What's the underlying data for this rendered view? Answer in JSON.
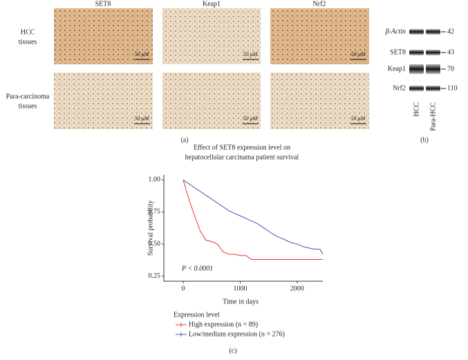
{
  "panel_a": {
    "columns": [
      "SET8",
      "Keap1",
      "Nrf2"
    ],
    "rows": [
      [
        "HCC",
        "tissues"
      ],
      [
        "Para-carcinoma",
        "tissues"
      ]
    ],
    "scale_bar": "50 μM",
    "caption": "(a)"
  },
  "panel_b": {
    "proteins": [
      "β-Actin",
      "SET8",
      "Keap1",
      "Nrf2"
    ],
    "sizes": [
      42,
      43,
      70,
      110
    ],
    "lanes": [
      "HCC",
      "Para-HCC"
    ],
    "caption": "(b)"
  },
  "chart_data": {
    "type": "line",
    "title": [
      "Effect of SET8 expression level on",
      "hepatocellular carcinama patient survival"
    ],
    "x_label": "Time in days",
    "y_label": "Survival probability",
    "annotation": "P < 0.0001",
    "legend_title": "Expression level",
    "x": [
      0,
      100,
      200,
      300,
      400,
      500,
      600,
      700,
      800,
      900,
      1000,
      1100,
      1200,
      1300,
      1400,
      1500,
      1600,
      1700,
      1800,
      1900,
      2000,
      2100,
      2200,
      2300,
      2400,
      2450
    ],
    "series": [
      {
        "name": "High expression (n = 89)",
        "color": "#e8333a",
        "values": [
          1.0,
          0.85,
          0.72,
          0.6,
          0.53,
          0.52,
          0.5,
          0.44,
          0.42,
          0.42,
          0.41,
          0.41,
          0.38,
          0.38,
          0.38,
          0.38,
          0.38,
          0.38,
          0.38,
          0.38,
          0.38,
          0.38,
          0.38,
          0.38,
          0.38,
          0.38
        ]
      },
      {
        "name": "Low/medium expression (n = 276)",
        "color": "#3b54a5",
        "values": [
          1.0,
          0.97,
          0.94,
          0.91,
          0.88,
          0.85,
          0.82,
          0.79,
          0.76,
          0.74,
          0.72,
          0.7,
          0.68,
          0.66,
          0.63,
          0.6,
          0.57,
          0.55,
          0.53,
          0.51,
          0.5,
          0.48,
          0.47,
          0.46,
          0.46,
          0.42
        ]
      }
    ],
    "xlim": [
      -340,
      2450
    ],
    "ylim": [
      0.21,
      1.04
    ],
    "xticks": [
      0,
      1000,
      2000
    ],
    "yticks": [
      {
        "value": 1.0,
        "label": "1.00"
      },
      {
        "value": 0.75,
        "label": "0.75"
      },
      {
        "value": 0.5,
        "label": "0.50"
      },
      {
        "value": 0.25,
        "label": "0.25"
      }
    ],
    "caption": "(c)"
  }
}
